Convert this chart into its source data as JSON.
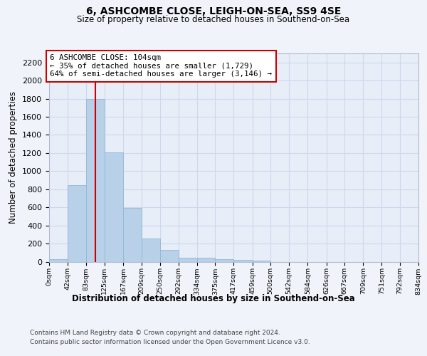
{
  "title": "6, ASHCOMBE CLOSE, LEIGH-ON-SEA, SS9 4SE",
  "subtitle": "Size of property relative to detached houses in Southend-on-Sea",
  "xlabel": "Distribution of detached houses by size in Southend-on-Sea",
  "ylabel": "Number of detached properties",
  "footnote1": "Contains HM Land Registry data © Crown copyright and database right 2024.",
  "footnote2": "Contains public sector information licensed under the Open Government Licence v3.0.",
  "annotation_title": "6 ASHCOMBE CLOSE: 104sqm",
  "annotation_line1": "← 35% of detached houses are smaller (1,729)",
  "annotation_line2": "64% of semi-detached houses are larger (3,146) →",
  "bar_color": "#b8d0e8",
  "bar_edge_color": "#90b8d8",
  "grid_color": "#ccd8ec",
  "background_color": "#e8eef8",
  "fig_background_color": "#f0f4fa",
  "ref_line_color": "#cc0000",
  "ref_line_x": 104,
  "bin_edges": [
    0,
    42,
    83,
    125,
    167,
    209,
    250,
    292,
    334,
    375,
    417,
    459,
    500,
    542,
    584,
    626,
    667,
    709,
    751,
    792,
    834
  ],
  "bar_heights": [
    25,
    845,
    1800,
    1210,
    590,
    255,
    130,
    45,
    45,
    30,
    20,
    10,
    0,
    0,
    0,
    0,
    0,
    0,
    0,
    0
  ],
  "ylim": [
    0,
    2300
  ],
  "yticks": [
    0,
    200,
    400,
    600,
    800,
    1000,
    1200,
    1400,
    1600,
    1800,
    2000,
    2200
  ],
  "tick_labels": [
    "0sqm",
    "42sqm",
    "83sqm",
    "125sqm",
    "167sqm",
    "209sqm",
    "250sqm",
    "292sqm",
    "334sqm",
    "375sqm",
    "417sqm",
    "459sqm",
    "500sqm",
    "542sqm",
    "584sqm",
    "626sqm",
    "667sqm",
    "709sqm",
    "751sqm",
    "792sqm",
    "834sqm"
  ]
}
